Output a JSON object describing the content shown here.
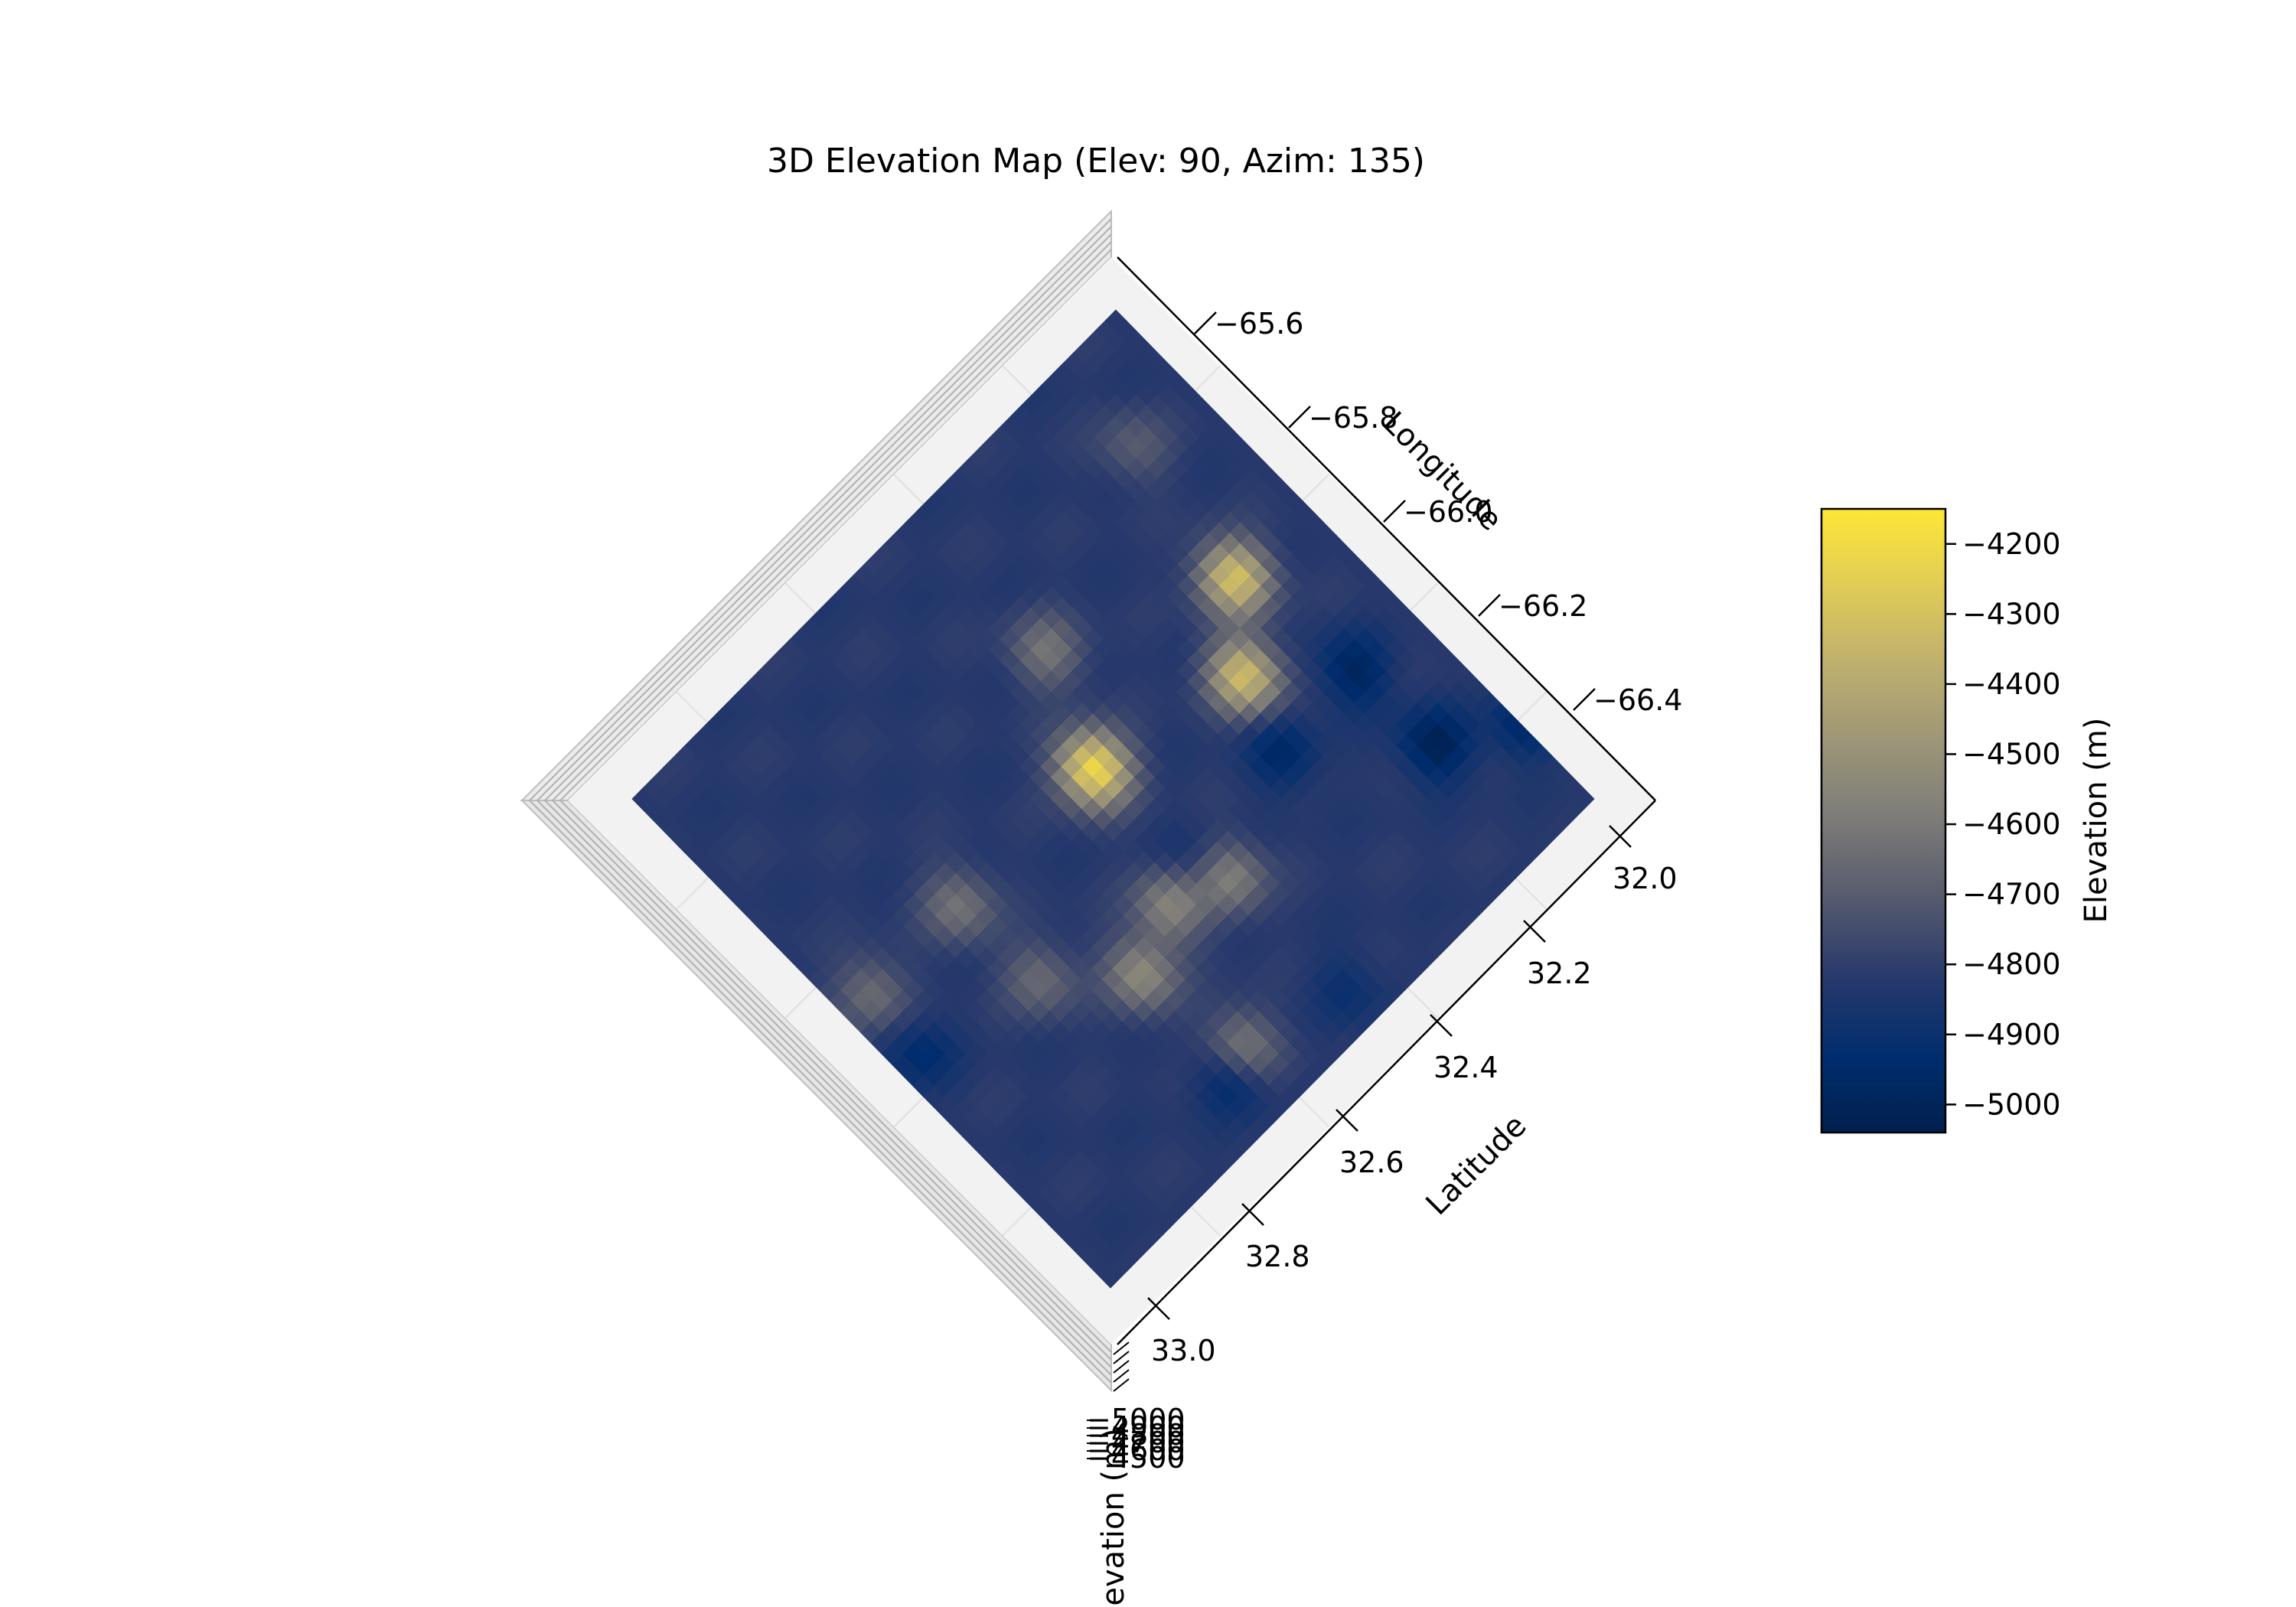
{
  "chart_data": {
    "type": "surface",
    "title": "3D Elevation Map (Elev: 90, Azim: 135)",
    "view": {
      "elevation": 90,
      "azimuth": 135
    },
    "x_axis": {
      "label": "Longitude",
      "ticks": [
        "−65.6",
        "−65.8",
        "−66.0",
        "−66.2",
        "−66.4"
      ],
      "range": [
        -66.5,
        -65.5
      ]
    },
    "y_axis": {
      "label": "Latitude",
      "ticks": [
        "32.0",
        "32.2",
        "32.4",
        "32.6",
        "32.8",
        "33.0"
      ],
      "range": [
        32.0,
        33.0
      ]
    },
    "z_axis": {
      "label": "Elevation (m)",
      "ticks": [
        "−5000",
        "−4900",
        "−4800",
        "−4700",
        "−4600",
        "−4500"
      ]
    },
    "colorbar": {
      "label": "Elevation (m)",
      "ticks": [
        "−4200",
        "−4300",
        "−4400",
        "−4500",
        "−4600",
        "−4700",
        "−4800",
        "−4900",
        "−5000"
      ],
      "tick_values": [
        -4200,
        -4300,
        -4400,
        -4500,
        -4600,
        -4700,
        -4800,
        -4900,
        -5000
      ],
      "range": [
        -5040,
        -4150
      ],
      "colormap": "cividis"
    },
    "baseline_elevation": -4820,
    "features": [
      {
        "kind": "peak",
        "lon": -65.95,
        "lat": 32.49,
        "elev": -4200
      },
      {
        "kind": "peak",
        "lon": -65.9,
        "lat": 32.15,
        "elev": -4310
      },
      {
        "kind": "peak",
        "lon": -66.01,
        "lat": 32.24,
        "elev": -4330
      },
      {
        "kind": "peak",
        "lon": -66.21,
        "lat": 32.65,
        "elev": -4540
      },
      {
        "kind": "peak",
        "lon": -66.17,
        "lat": 32.55,
        "elev": -4560
      },
      {
        "kind": "peak",
        "lon": -66.2,
        "lat": 32.46,
        "elev": -4550
      },
      {
        "kind": "peak",
        "lon": -65.95,
        "lat": 32.77,
        "elev": -4620
      },
      {
        "kind": "peak",
        "lon": -66.39,
        "lat": 32.62,
        "elev": -4570
      },
      {
        "kind": "peak",
        "lon": -65.78,
        "lat": 32.42,
        "elev": -4620
      },
      {
        "kind": "peak",
        "lon": -65.66,
        "lat": 32.12,
        "elev": -4700
      },
      {
        "kind": "peak",
        "lon": -65.95,
        "lat": 32.95,
        "elev": -4640
      },
      {
        "kind": "peak",
        "lon": -66.11,
        "lat": 32.76,
        "elev": -4650
      },
      {
        "kind": "trough",
        "lon": -66.28,
        "lat": 32.11,
        "elev": -5020
      },
      {
        "kind": "trough",
        "lon": -66.12,
        "lat": 32.12,
        "elev": -4990
      },
      {
        "kind": "trough",
        "lon": -66.13,
        "lat": 32.28,
        "elev": -4960
      },
      {
        "kind": "trough",
        "lon": -66.41,
        "lat": 32.66,
        "elev": -4980
      },
      {
        "kind": "trough",
        "lon": -66.06,
        "lat": 32.96,
        "elev": -4940
      },
      {
        "kind": "trough",
        "lon": -66.16,
        "lat": 32.48,
        "elev": -4920
      },
      {
        "kind": "trough",
        "lon": -66.35,
        "lat": 32.0,
        "elev": -4950
      },
      {
        "kind": "trough",
        "lon": -66.44,
        "lat": 32.45,
        "elev": -4900
      }
    ]
  }
}
